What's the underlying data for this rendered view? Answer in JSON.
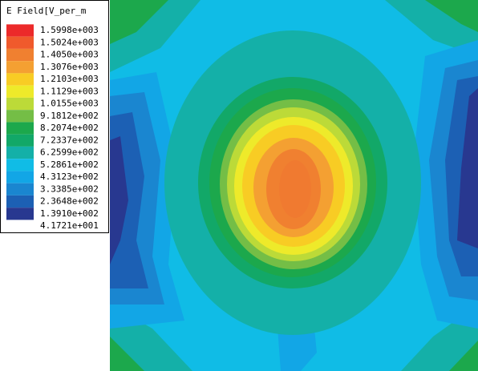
{
  "legend": {
    "title": "E Field[V_per_m",
    "labels": [
      "1.5998e+003",
      "1.5024e+003",
      "1.4050e+003",
      "1.3076e+003",
      "1.2103e+003",
      "1.1129e+003",
      "1.0155e+003",
      "9.1812e+002",
      "8.2074e+002",
      "7.2337e+002",
      "6.2599e+002",
      "5.2861e+002",
      "4.3123e+002",
      "3.3385e+002",
      "2.3648e+002",
      "1.3910e+002",
      "4.1721e+001"
    ],
    "colors": [
      "#ec2a2a",
      "#f05a2c",
      "#f08030",
      "#f4a032",
      "#f8cc24",
      "#eeea2a",
      "#bcda38",
      "#74be46",
      "#1ca84c",
      "#12a868",
      "#14b0a8",
      "#10bce6",
      "#12a6e6",
      "#1a86d0",
      "#1c60b4",
      "#283890"
    ]
  }
}
